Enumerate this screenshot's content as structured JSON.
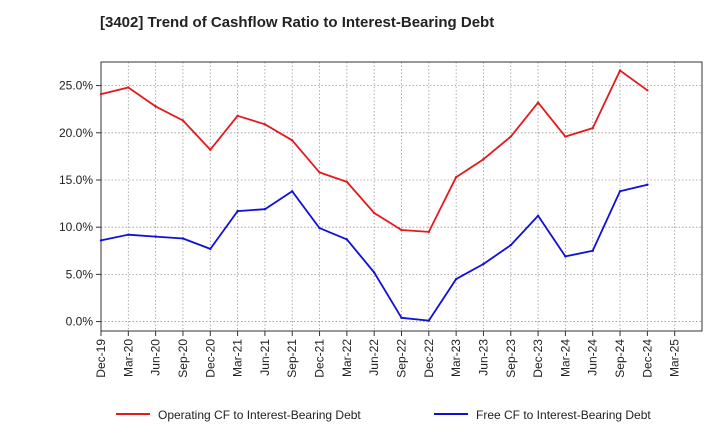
{
  "chart_data": {
    "type": "line",
    "title": "[3402]  Trend of Cashflow Ratio to Interest-Bearing Debt",
    "xlabel": "",
    "ylabel": "",
    "categories": [
      "Dec-19",
      "Mar-20",
      "Jun-20",
      "Sep-20",
      "Dec-20",
      "Mar-21",
      "Jun-21",
      "Sep-21",
      "Dec-21",
      "Mar-22",
      "Jun-22",
      "Sep-22",
      "Dec-22",
      "Mar-23",
      "Jun-23",
      "Sep-23",
      "Dec-23",
      "Mar-24",
      "Jun-24",
      "Sep-24",
      "Dec-24",
      "Mar-25"
    ],
    "y_ticks": [
      "0.0%",
      "5.0%",
      "10.0%",
      "15.0%",
      "20.0%",
      "25.0%"
    ],
    "ylim": [
      -1,
      27.5
    ],
    "grid": true,
    "legend_position": "bottom",
    "series": [
      {
        "name": "Operating CF to Interest-Bearing Debt",
        "color": "#e31a1c",
        "values": [
          24.1,
          24.8,
          22.8,
          21.3,
          18.2,
          21.8,
          20.9,
          19.2,
          15.8,
          14.8,
          11.5,
          9.7,
          9.5,
          15.3,
          17.2,
          19.6,
          23.2,
          19.6,
          20.5,
          26.6,
          24.5,
          null
        ]
      },
      {
        "name": "Free CF to Interest-Bearing Debt",
        "color": "#1010d8",
        "values": [
          8.6,
          9.2,
          9.0,
          8.8,
          7.7,
          11.7,
          11.9,
          13.8,
          9.9,
          8.7,
          5.2,
          0.4,
          0.1,
          4.5,
          6.1,
          8.1,
          11.2,
          6.9,
          7.5,
          13.8,
          14.5,
          null
        ]
      }
    ]
  }
}
